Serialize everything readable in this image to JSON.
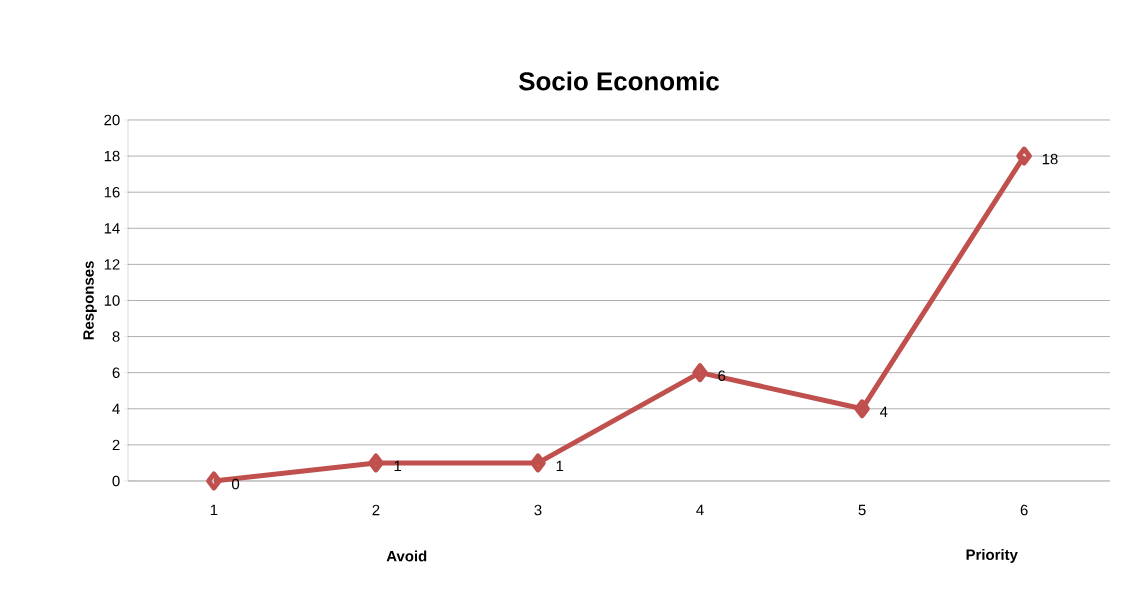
{
  "chart_data": {
    "type": "line",
    "title": "Socio Economic",
    "ylabel": "Responses",
    "categories": [
      "1",
      "2",
      "3",
      "4",
      "5",
      "6"
    ],
    "values": [
      0,
      1,
      1,
      6,
      4,
      18
    ],
    "color": "#c0504d",
    "ylim": [
      0,
      20
    ],
    "yticks": [
      0,
      2,
      4,
      6,
      8,
      10,
      12,
      14,
      16,
      18,
      20
    ],
    "grid": "y",
    "marker": "diamond",
    "line_style": "solid",
    "data_labels": true,
    "annotations": [
      "Avoid",
      "Priority"
    ]
  }
}
